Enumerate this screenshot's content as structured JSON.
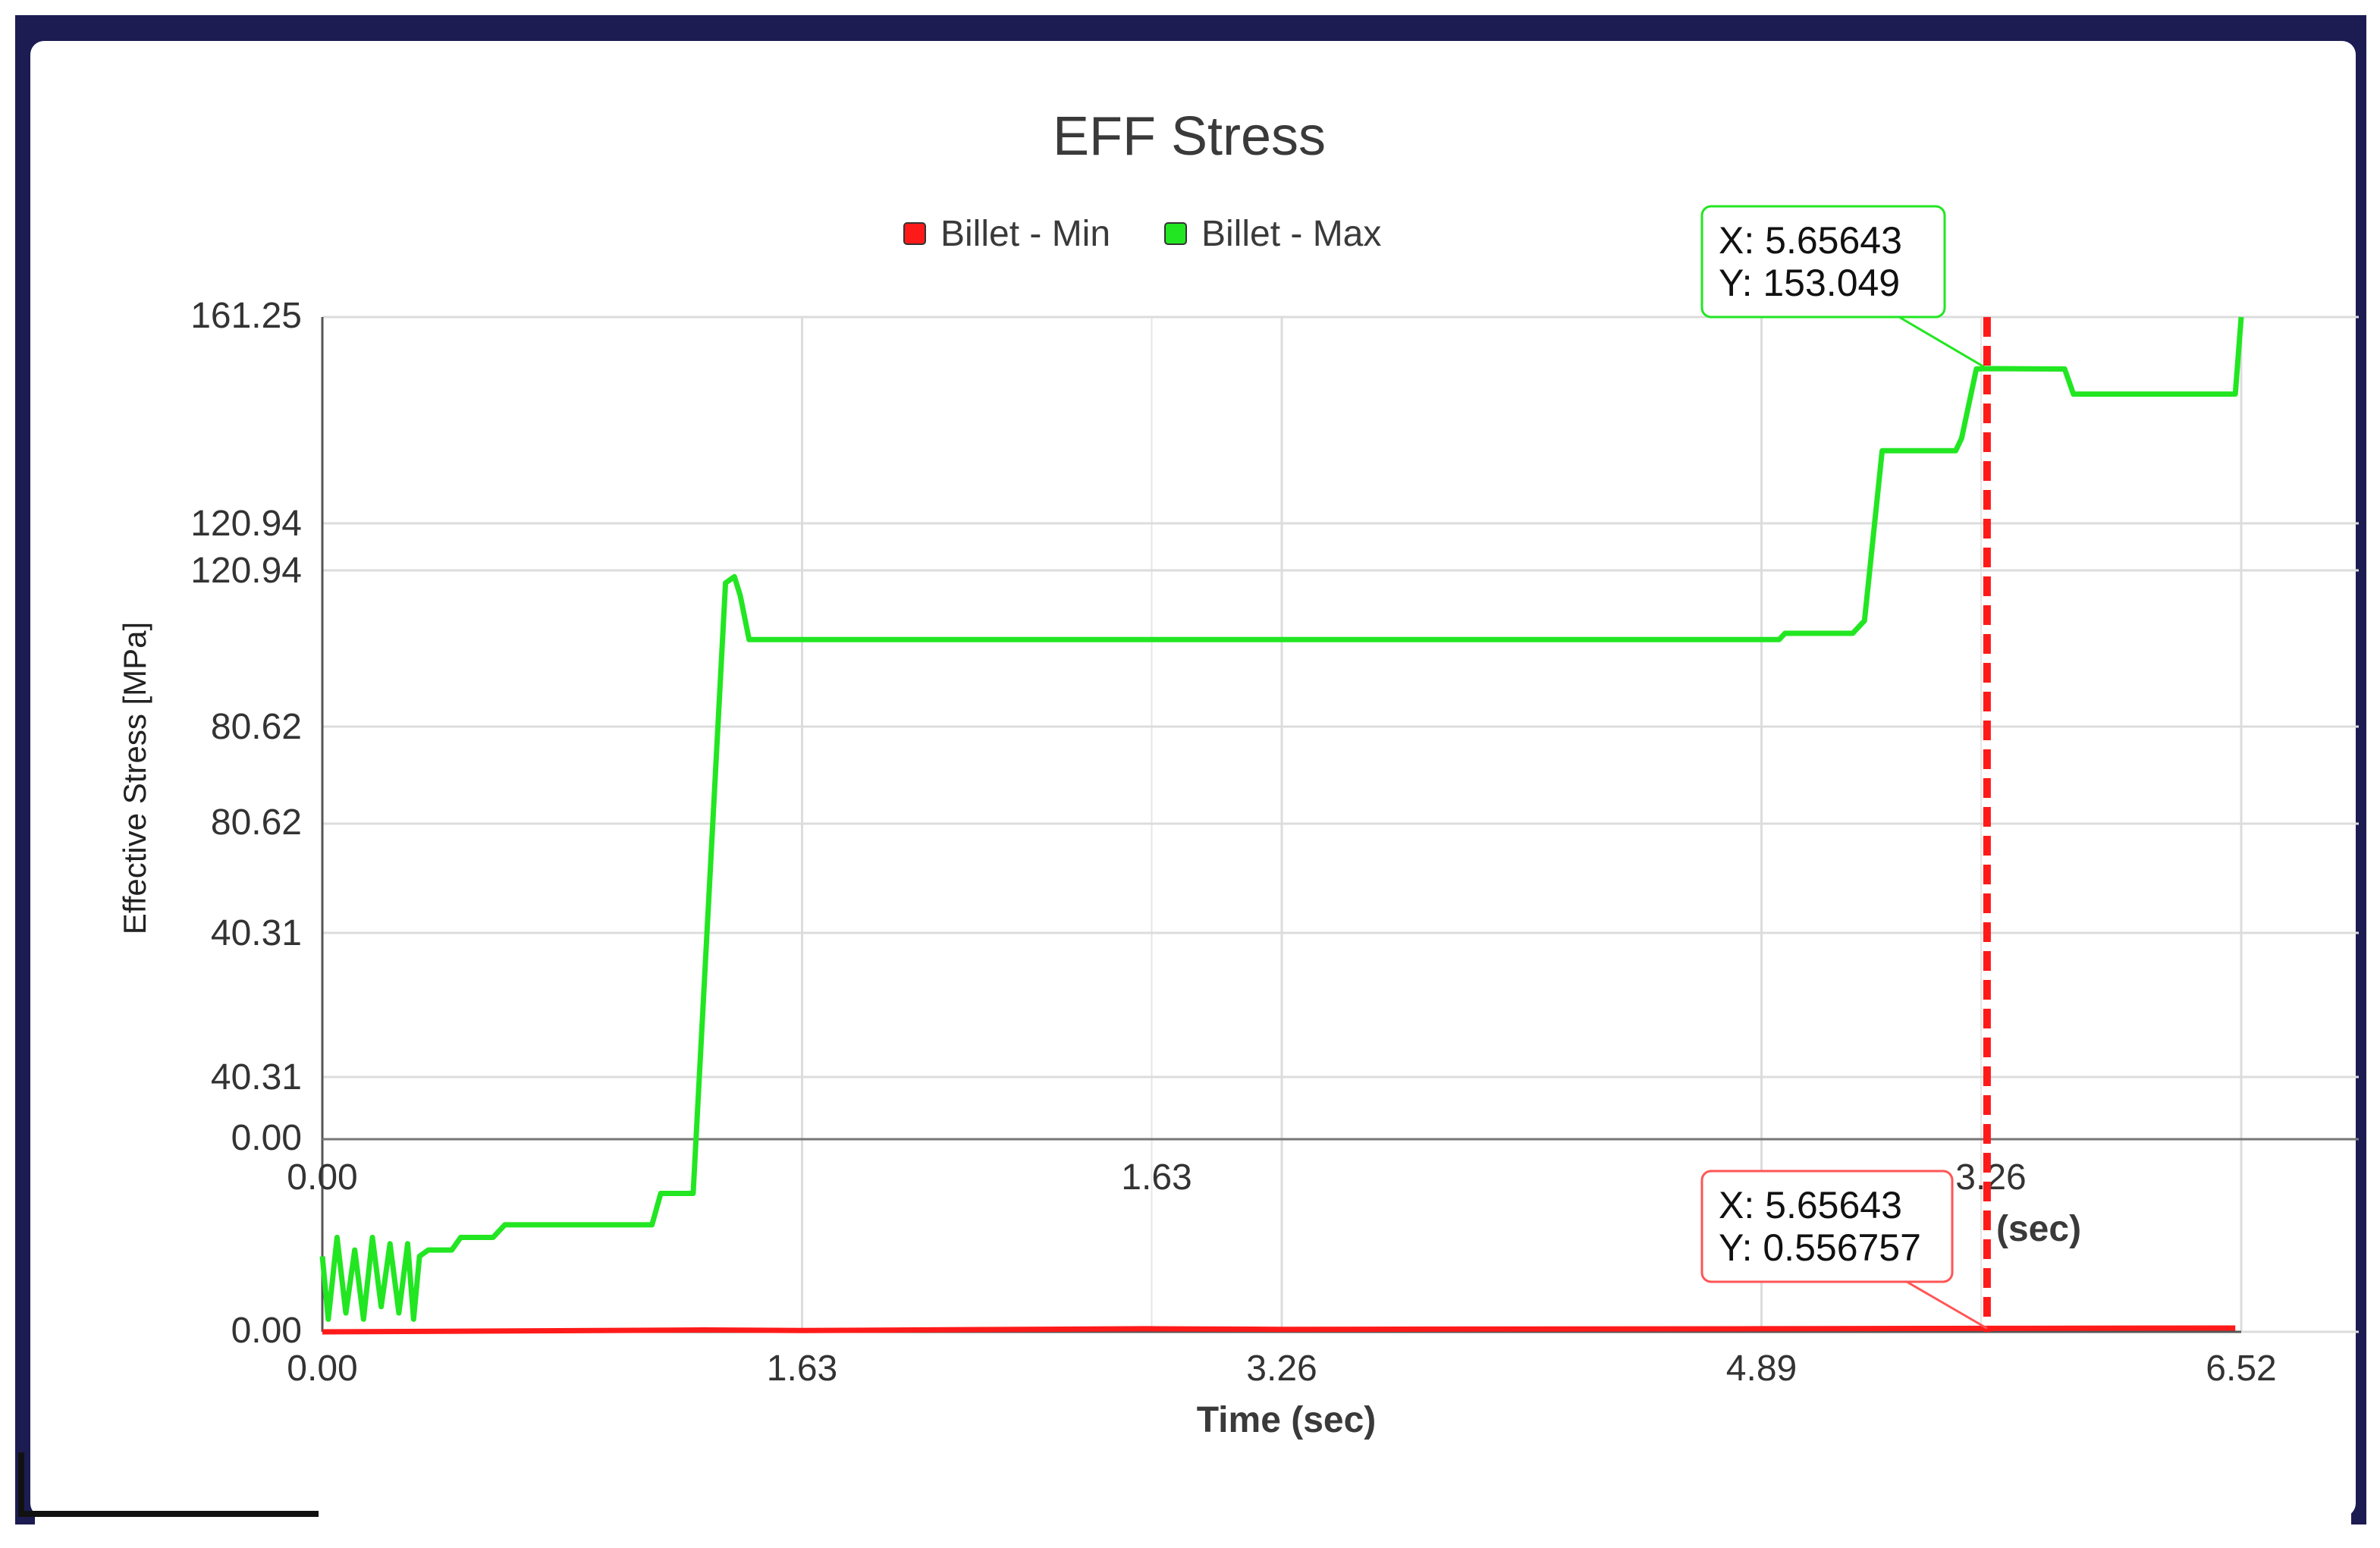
{
  "window": {
    "colors": {
      "frame_bg": "#1c1c52",
      "panel_bg": "#ffffff",
      "grid": "#dcdcdc",
      "axis": "#555555",
      "min_series": "#ff1a1a",
      "max_series": "#22e622",
      "cursor_line": "#ff1a1a"
    }
  },
  "chart_data": {
    "type": "line",
    "title": "EFF Stress",
    "xlabel": "Time (sec)",
    "ylabel": "Effective Stress [MPa]",
    "xlim": [
      0,
      6.52
    ],
    "ylim": [
      0,
      161.25
    ],
    "legend_position": "top-center",
    "grid": true,
    "x_ticks": [
      "0.00",
      "1.63",
      "3.26",
      "4.89",
      "6.52"
    ],
    "y_ticks": [
      "0.00",
      "40.31",
      "40.31",
      "80.62",
      "80.62",
      "120.94",
      "120.94",
      "161.25"
    ],
    "overlay_axis": {
      "x_ticks": [
        "0.00",
        "1.63",
        "3.26"
      ],
      "x_unit": "(sec)"
    },
    "series": [
      {
        "name": "Billet - Min",
        "color": "#ff1a1a",
        "points": [
          [
            0,
            0
          ],
          [
            1.3,
            0.3
          ],
          [
            1.63,
            0.2
          ],
          [
            2.8,
            0.5
          ],
          [
            3.26,
            0.4
          ],
          [
            4.89,
            0.5
          ],
          [
            5.65643,
            0.556757
          ],
          [
            6.5,
            0.6
          ]
        ]
      },
      {
        "name": "Billet - Max",
        "color": "#22e622",
        "points": [
          [
            0,
            12
          ],
          [
            0.02,
            2
          ],
          [
            0.05,
            15
          ],
          [
            0.08,
            3
          ],
          [
            0.11,
            13
          ],
          [
            0.14,
            2
          ],
          [
            0.17,
            15
          ],
          [
            0.2,
            4
          ],
          [
            0.23,
            14
          ],
          [
            0.26,
            3
          ],
          [
            0.29,
            14
          ],
          [
            0.31,
            2
          ],
          [
            0.33,
            12
          ],
          [
            0.36,
            13
          ],
          [
            0.44,
            13
          ],
          [
            0.47,
            15
          ],
          [
            0.58,
            15
          ],
          [
            0.62,
            17
          ],
          [
            0.75,
            17
          ],
          [
            1.0,
            17
          ],
          [
            1.12,
            17
          ],
          [
            1.15,
            22
          ],
          [
            1.26,
            22
          ],
          [
            1.37,
            119
          ],
          [
            1.4,
            120
          ],
          [
            1.42,
            117
          ],
          [
            1.45,
            110
          ],
          [
            2.5,
            110
          ],
          [
            4.95,
            110
          ],
          [
            4.97,
            111
          ],
          [
            5.2,
            111
          ],
          [
            5.24,
            113
          ],
          [
            5.3,
            140
          ],
          [
            5.34,
            140
          ],
          [
            5.55,
            140
          ],
          [
            5.57,
            142
          ],
          [
            5.62,
            153
          ],
          [
            5.65643,
            153.049
          ],
          [
            5.92,
            153
          ],
          [
            5.95,
            149
          ],
          [
            6.5,
            149
          ],
          [
            6.52,
            161.25
          ]
        ]
      }
    ],
    "cursor": {
      "x": 5.65643
    },
    "annotations": [
      {
        "series": "Billet - Max",
        "x_text": "X: 5.65643",
        "y_text": "Y: 153.049",
        "x": 5.65643,
        "y": 153.049
      },
      {
        "series": "Billet - Min",
        "x_text": "X: 5.65643",
        "y_text": "Y: 0.556757",
        "x": 5.65643,
        "y": 0.556757
      }
    ]
  }
}
